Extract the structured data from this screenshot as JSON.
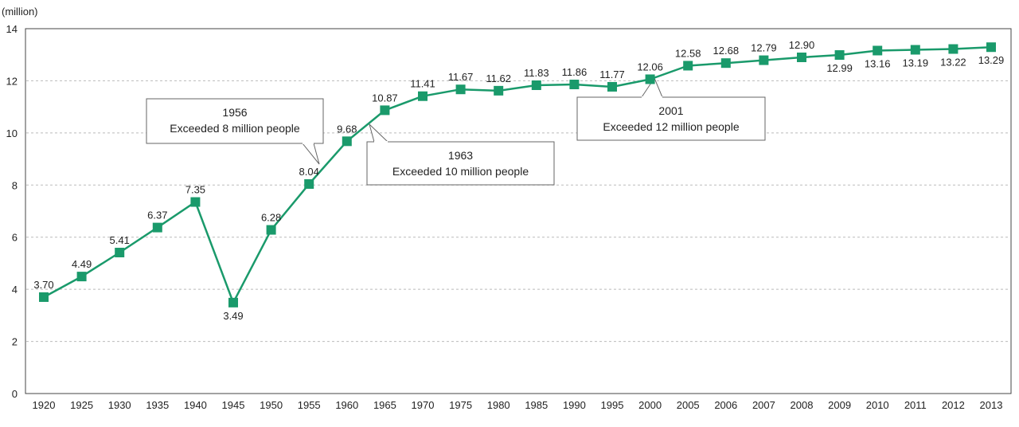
{
  "chart_data": {
    "type": "line",
    "title": "",
    "xlabel": "",
    "ylabel": "(million)",
    "ylim": [
      0,
      14
    ],
    "yticks": [
      0,
      2,
      4,
      6,
      8,
      10,
      12,
      14
    ],
    "grid": "horizontal-dashed",
    "categories": [
      "1920",
      "1925",
      "1930",
      "1935",
      "1940",
      "1945",
      "1950",
      "1955",
      "1960",
      "1965",
      "1970",
      "1975",
      "1980",
      "1985",
      "1990",
      "1995",
      "2000",
      "2005",
      "2006",
      "2007",
      "2008",
      "2009",
      "2010",
      "2011",
      "2012",
      "2013"
    ],
    "values": [
      3.7,
      4.49,
      5.41,
      6.37,
      7.35,
      3.49,
      6.28,
      8.04,
      9.68,
      10.87,
      11.41,
      11.67,
      11.62,
      11.83,
      11.86,
      11.77,
      12.06,
      12.58,
      12.68,
      12.79,
      12.9,
      12.99,
      13.16,
      13.19,
      13.22,
      13.29
    ],
    "data_labels": [
      "3.70",
      "4.49",
      "5.41",
      "6.37",
      "7.35",
      "3.49",
      "6.28",
      "8.04",
      "9.68",
      "10.87",
      "11.41",
      "11.67",
      "11.62",
      "11.83",
      "11.86",
      "11.77",
      "12.06",
      "12.58",
      "12.68",
      "12.79",
      "12.90",
      "12.99",
      "13.16",
      "13.19",
      "13.22",
      "13.29"
    ],
    "label_below": [
      5,
      21,
      22,
      23,
      24,
      25
    ],
    "series_color": "#1a9a6b",
    "annotations": [
      {
        "year": "1956",
        "text": "Exceeded 8 million people",
        "points_to": "1955"
      },
      {
        "year": "1963",
        "text": "Exceeded 10 million people",
        "points_to": "1965"
      },
      {
        "year": "2001",
        "text": "Exceeded 12 million people",
        "points_to": "2000"
      }
    ]
  }
}
